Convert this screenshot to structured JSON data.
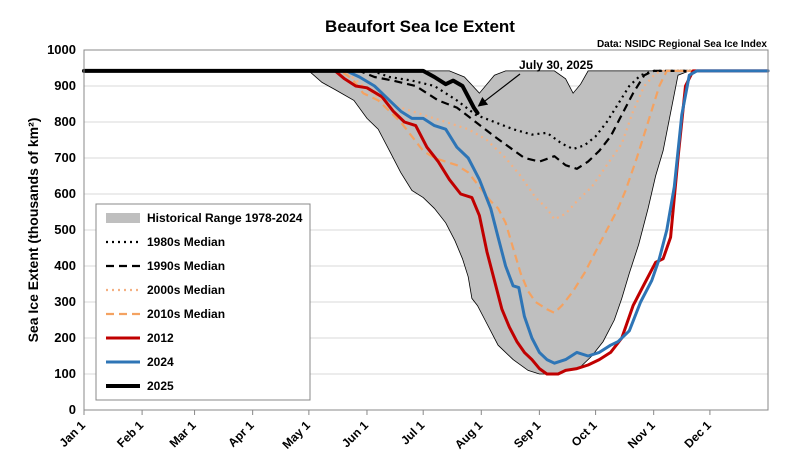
{
  "chart_data": {
    "type": "line",
    "title": "Beaufort Sea Ice Extent",
    "source": "Data: NSIDC Regional Sea Ice Index",
    "ylabel": "Sea Ice Extent (thousands of km²)",
    "xlabel": "",
    "ylim": [
      0,
      1000
    ],
    "yticks": [
      0,
      100,
      200,
      300,
      400,
      500,
      600,
      700,
      800,
      900,
      1000
    ],
    "xlim": [
      1,
      366
    ],
    "xticks": [
      {
        "label": "Jan 1",
        "day": 1
      },
      {
        "label": "Feb 1",
        "day": 32
      },
      {
        "label": "Mar 1",
        "day": 60
      },
      {
        "label": "Apr 1",
        "day": 91
      },
      {
        "label": "May 1",
        "day": 121
      },
      {
        "label": "Jun 1",
        "day": 152
      },
      {
        "label": "Jul 1",
        "day": 182
      },
      {
        "label": "Aug 1",
        "day": 213
      },
      {
        "label": "Sep 1",
        "day": 244
      },
      {
        "label": "Oct 1",
        "day": 274
      },
      {
        "label": "Nov 1",
        "day": 305
      },
      {
        "label": "Dec 1",
        "day": 335
      }
    ],
    "annotation": {
      "text": "July 30, 2025",
      "day": 211,
      "value": 830
    },
    "legend_position": "bottom-left",
    "range": {
      "name": "Historical Range 1978-2024",
      "color": "#bfbfbf",
      "upper": [
        [
          1,
          942
        ],
        [
          121,
          942
        ],
        [
          135,
          942
        ],
        [
          152,
          942
        ],
        [
          170,
          942
        ],
        [
          186,
          942
        ],
        [
          196,
          942
        ],
        [
          204,
          925
        ],
        [
          212,
          880
        ],
        [
          220,
          930
        ],
        [
          226,
          942
        ],
        [
          244,
          942
        ],
        [
          252,
          942
        ],
        [
          258,
          920
        ],
        [
          262,
          880
        ],
        [
          266,
          905
        ],
        [
          270,
          942
        ],
        [
          285,
          942
        ],
        [
          366,
          942
        ]
      ],
      "lower": [
        [
          1,
          942
        ],
        [
          121,
          942
        ],
        [
          128,
          910
        ],
        [
          135,
          890
        ],
        [
          145,
          860
        ],
        [
          152,
          810
        ],
        [
          158,
          780
        ],
        [
          164,
          720
        ],
        [
          170,
          660
        ],
        [
          176,
          610
        ],
        [
          182,
          590
        ],
        [
          188,
          560
        ],
        [
          194,
          520
        ],
        [
          199,
          470
        ],
        [
          203,
          420
        ],
        [
          206,
          370
        ],
        [
          208,
          310
        ],
        [
          211,
          290
        ],
        [
          215,
          250
        ],
        [
          222,
          180
        ],
        [
          230,
          140
        ],
        [
          238,
          110
        ],
        [
          244,
          100
        ],
        [
          252,
          100
        ],
        [
          260,
          110
        ],
        [
          266,
          120
        ],
        [
          272,
          150
        ],
        [
          278,
          190
        ],
        [
          284,
          250
        ],
        [
          288,
          310
        ],
        [
          292,
          380
        ],
        [
          297,
          460
        ],
        [
          302,
          560
        ],
        [
          306,
          650
        ],
        [
          310,
          720
        ],
        [
          318,
          930
        ],
        [
          324,
          942
        ],
        [
          366,
          942
        ]
      ]
    },
    "series": [
      {
        "name": "1980s Median",
        "color": "#000000",
        "dash": "2 4",
        "width": 2.2,
        "values": [
          [
            1,
            942
          ],
          [
            155,
            942
          ],
          [
            164,
            925
          ],
          [
            176,
            915
          ],
          [
            188,
            900
          ],
          [
            200,
            860
          ],
          [
            210,
            820
          ],
          [
            220,
            800
          ],
          [
            230,
            780
          ],
          [
            240,
            765
          ],
          [
            248,
            770
          ],
          [
            256,
            740
          ],
          [
            262,
            725
          ],
          [
            268,
            735
          ],
          [
            274,
            760
          ],
          [
            280,
            800
          ],
          [
            286,
            850
          ],
          [
            292,
            900
          ],
          [
            298,
            930
          ],
          [
            305,
            942
          ],
          [
            366,
            942
          ]
        ]
      },
      {
        "name": "1990s Median",
        "color": "#000000",
        "dash": "8 5",
        "width": 2.2,
        "values": [
          [
            1,
            942
          ],
          [
            148,
            942
          ],
          [
            156,
            925
          ],
          [
            166,
            915
          ],
          [
            178,
            900
          ],
          [
            190,
            860
          ],
          [
            200,
            840
          ],
          [
            210,
            800
          ],
          [
            220,
            760
          ],
          [
            228,
            730
          ],
          [
            236,
            700
          ],
          [
            244,
            690
          ],
          [
            252,
            705
          ],
          [
            258,
            680
          ],
          [
            264,
            670
          ],
          [
            270,
            690
          ],
          [
            276,
            720
          ],
          [
            282,
            760
          ],
          [
            288,
            820
          ],
          [
            294,
            880
          ],
          [
            300,
            930
          ],
          [
            305,
            942
          ],
          [
            366,
            942
          ]
        ]
      },
      {
        "name": "2000s Median",
        "color": "#f4b183",
        "dash": "2 4",
        "width": 2.2,
        "values": [
          [
            1,
            942
          ],
          [
            140,
            942
          ],
          [
            150,
            900
          ],
          [
            160,
            860
          ],
          [
            170,
            840
          ],
          [
            182,
            820
          ],
          [
            194,
            800
          ],
          [
            206,
            780
          ],
          [
            216,
            750
          ],
          [
            226,
            700
          ],
          [
            234,
            650
          ],
          [
            242,
            590
          ],
          [
            248,
            560
          ],
          [
            252,
            530
          ],
          [
            258,
            545
          ],
          [
            264,
            580
          ],
          [
            272,
            620
          ],
          [
            280,
            680
          ],
          [
            288,
            740
          ],
          [
            294,
            830
          ],
          [
            300,
            900
          ],
          [
            306,
            935
          ],
          [
            310,
            942
          ],
          [
            366,
            942
          ]
        ]
      },
      {
        "name": "2010s Median",
        "color": "#f4a261",
        "dash": "8 5",
        "width": 2.2,
        "values": [
          [
            1,
            942
          ],
          [
            138,
            942
          ],
          [
            144,
            920
          ],
          [
            150,
            880
          ],
          [
            158,
            860
          ],
          [
            164,
            830
          ],
          [
            170,
            800
          ],
          [
            176,
            760
          ],
          [
            182,
            720
          ],
          [
            188,
            700
          ],
          [
            194,
            690
          ],
          [
            200,
            680
          ],
          [
            206,
            660
          ],
          [
            212,
            620
          ],
          [
            218,
            580
          ],
          [
            222,
            560
          ],
          [
            226,
            520
          ],
          [
            230,
            450
          ],
          [
            234,
            380
          ],
          [
            238,
            330
          ],
          [
            242,
            300
          ],
          [
            248,
            280
          ],
          [
            252,
            270
          ],
          [
            256,
            290
          ],
          [
            262,
            330
          ],
          [
            268,
            380
          ],
          [
            274,
            440
          ],
          [
            280,
            500
          ],
          [
            286,
            560
          ],
          [
            290,
            610
          ],
          [
            296,
            700
          ],
          [
            302,
            800
          ],
          [
            308,
            900
          ],
          [
            312,
            942
          ],
          [
            366,
            942
          ]
        ]
      },
      {
        "name": "2012",
        "color": "#c00000",
        "dash": "",
        "width": 3,
        "values": [
          [
            1,
            942
          ],
          [
            135,
            942
          ],
          [
            140,
            920
          ],
          [
            146,
            900
          ],
          [
            152,
            895
          ],
          [
            160,
            870
          ],
          [
            166,
            830
          ],
          [
            172,
            800
          ],
          [
            178,
            790
          ],
          [
            184,
            730
          ],
          [
            190,
            690
          ],
          [
            196,
            640
          ],
          [
            202,
            600
          ],
          [
            208,
            590
          ],
          [
            212,
            540
          ],
          [
            216,
            440
          ],
          [
            220,
            360
          ],
          [
            224,
            280
          ],
          [
            228,
            230
          ],
          [
            232,
            190
          ],
          [
            236,
            160
          ],
          [
            240,
            140
          ],
          [
            244,
            115
          ],
          [
            248,
            100
          ],
          [
            254,
            100
          ],
          [
            258,
            110
          ],
          [
            264,
            115
          ],
          [
            270,
            125
          ],
          [
            276,
            140
          ],
          [
            282,
            160
          ],
          [
            288,
            200
          ],
          [
            294,
            290
          ],
          [
            300,
            350
          ],
          [
            306,
            410
          ],
          [
            310,
            420
          ],
          [
            314,
            480
          ],
          [
            318,
            700
          ],
          [
            322,
            900
          ],
          [
            326,
            942
          ],
          [
            366,
            942
          ]
        ]
      },
      {
        "name": "2024",
        "color": "#2e75b6",
        "dash": "",
        "width": 3,
        "values": [
          [
            1,
            942
          ],
          [
            141,
            942
          ],
          [
            148,
            925
          ],
          [
            156,
            900
          ],
          [
            164,
            860
          ],
          [
            170,
            830
          ],
          [
            176,
            810
          ],
          [
            182,
            810
          ],
          [
            188,
            790
          ],
          [
            194,
            780
          ],
          [
            200,
            730
          ],
          [
            206,
            700
          ],
          [
            212,
            640
          ],
          [
            218,
            560
          ],
          [
            222,
            480
          ],
          [
            226,
            400
          ],
          [
            230,
            345
          ],
          [
            233,
            340
          ],
          [
            236,
            260
          ],
          [
            240,
            200
          ],
          [
            244,
            160
          ],
          [
            248,
            140
          ],
          [
            252,
            130
          ],
          [
            258,
            140
          ],
          [
            264,
            160
          ],
          [
            270,
            150
          ],
          [
            276,
            160
          ],
          [
            282,
            180
          ],
          [
            286,
            190
          ],
          [
            292,
            220
          ],
          [
            298,
            300
          ],
          [
            304,
            360
          ],
          [
            308,
            420
          ],
          [
            312,
            500
          ],
          [
            316,
            620
          ],
          [
            320,
            820
          ],
          [
            324,
            930
          ],
          [
            328,
            942
          ],
          [
            366,
            942
          ]
        ]
      },
      {
        "name": "2025",
        "color": "#000000",
        "dash": "",
        "width": 4,
        "values": [
          [
            1,
            942
          ],
          [
            182,
            942
          ],
          [
            188,
            925
          ],
          [
            194,
            905
          ],
          [
            198,
            915
          ],
          [
            203,
            900
          ],
          [
            206,
            870
          ],
          [
            209,
            840
          ],
          [
            211,
            825
          ]
        ]
      }
    ]
  }
}
